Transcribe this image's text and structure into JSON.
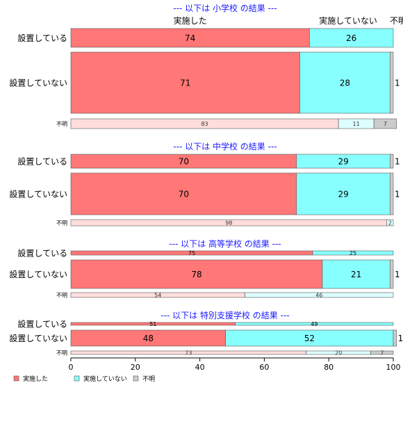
{
  "chart_data": {
    "type": "bar",
    "orientation": "horizontal",
    "stacked": "percent",
    "xlim": [
      0,
      100
    ],
    "xticks": [
      0,
      20,
      40,
      60,
      80,
      100
    ],
    "colors": {
      "実施した": "#ff7777",
      "実施していない": "#88ffff",
      "不明": "#cccccc"
    },
    "column_headers": [
      "実施した",
      "実施していない",
      "不明"
    ],
    "legend": {
      "position": "bottom-left",
      "entries": [
        {
          "label": "実施した",
          "color": "#ff7777"
        },
        {
          "label": "実施していない",
          "color": "#88ffff"
        },
        {
          "label": "不明",
          "color": "#cccccc"
        }
      ]
    },
    "panels": [
      {
        "title": "--- 以下は 小学校 の結果 ---",
        "rows": [
          {
            "label": "設置している",
            "values": [
              74,
              26,
              0
            ],
            "labels": [
              "74",
              "26",
              ""
            ]
          },
          {
            "label": "設置していない",
            "values": [
              71,
              28,
              1
            ],
            "labels": [
              "71",
              "28",
              "1"
            ]
          },
          {
            "label": "不明",
            "values": [
              83,
              11,
              7
            ],
            "labels": [
              "83",
              "11",
              "7"
            ]
          }
        ]
      },
      {
        "title": "--- 以下は 中学校 の結果 ---",
        "rows": [
          {
            "label": "設置している",
            "values": [
              70,
              29,
              1
            ],
            "labels": [
              "70",
              "29",
              "1"
            ]
          },
          {
            "label": "設置していない",
            "values": [
              70,
              29,
              1
            ],
            "labels": [
              "70",
              "29",
              "1"
            ]
          },
          {
            "label": "不明",
            "values": [
              98,
              2,
              0
            ],
            "labels": [
              "98",
              "2",
              ""
            ]
          }
        ]
      },
      {
        "title": "--- 以下は 高等学校 の結果 ---",
        "rows": [
          {
            "label": "設置している",
            "values": [
              75,
              25,
              0
            ],
            "labels": [
              "75",
              "25",
              ""
            ]
          },
          {
            "label": "設置していない",
            "values": [
              78,
              21,
              1
            ],
            "labels": [
              "78",
              "21",
              "1"
            ]
          },
          {
            "label": "不明",
            "values": [
              54,
              46,
              0
            ],
            "labels": [
              "54",
              "46",
              ""
            ]
          }
        ]
      },
      {
        "title": "--- 以下は 特別支援学校 の結果 ---",
        "rows": [
          {
            "label": "設置している",
            "values": [
              51,
              49,
              0
            ],
            "labels": [
              "51",
              "49",
              ""
            ]
          },
          {
            "label": "設置していない",
            "values": [
              48,
              52,
              1
            ],
            "labels": [
              "48",
              "52",
              "1"
            ]
          },
          {
            "label": "不明",
            "values": [
              73,
              20,
              7
            ],
            "labels": [
              "73",
              "20",
              "7"
            ]
          }
        ]
      }
    ]
  }
}
